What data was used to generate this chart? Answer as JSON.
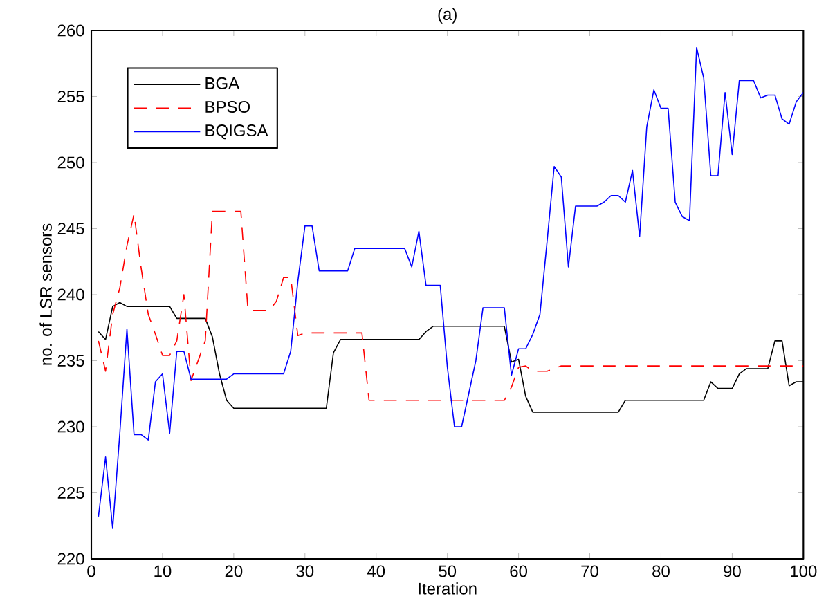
{
  "chart_data": {
    "type": "line",
    "title": "(a)",
    "xlabel": "Iteration",
    "ylabel": "no. of LSR sensors",
    "x": [
      1,
      2,
      3,
      4,
      5,
      6,
      7,
      8,
      9,
      10,
      11,
      12,
      13,
      14,
      15,
      16,
      17,
      18,
      19,
      20,
      21,
      22,
      23,
      24,
      25,
      26,
      27,
      28,
      29,
      30,
      31,
      32,
      33,
      34,
      35,
      36,
      37,
      38,
      39,
      40,
      41,
      42,
      43,
      44,
      45,
      46,
      47,
      48,
      49,
      50,
      51,
      52,
      53,
      54,
      55,
      56,
      57,
      58,
      59,
      60,
      61,
      62,
      63,
      64,
      65,
      66,
      67,
      68,
      69,
      70,
      71,
      72,
      73,
      74,
      75,
      76,
      77,
      78,
      79,
      80,
      81,
      82,
      83,
      84,
      85,
      86,
      87,
      88,
      89,
      90,
      91,
      92,
      93,
      94,
      95,
      96,
      97,
      98,
      99,
      100
    ],
    "series": [
      {
        "name": "BGA",
        "color": "#000000",
        "line_style": "solid",
        "values": [
          237.2,
          236.6,
          239.1,
          239.4,
          239.1,
          239.1,
          239.1,
          239.1,
          239.1,
          239.1,
          239.1,
          238.2,
          238.2,
          238.2,
          238.2,
          238.2,
          236.8,
          234.0,
          232.0,
          231.4,
          231.4,
          231.4,
          231.4,
          231.4,
          231.4,
          231.4,
          231.4,
          231.4,
          231.4,
          231.4,
          231.4,
          231.4,
          231.4,
          235.6,
          236.6,
          236.6,
          236.6,
          236.6,
          236.6,
          236.6,
          236.6,
          236.6,
          236.6,
          236.6,
          236.6,
          236.6,
          237.2,
          237.6,
          237.6,
          237.6,
          237.6,
          237.6,
          237.6,
          237.6,
          237.6,
          237.6,
          237.6,
          237.6,
          234.9,
          235.1,
          232.3,
          231.1,
          231.1,
          231.1,
          231.1,
          231.1,
          231.1,
          231.1,
          231.1,
          231.1,
          231.1,
          231.1,
          231.1,
          231.1,
          232.0,
          232.0,
          232.0,
          232.0,
          232.0,
          232.0,
          232.0,
          232.0,
          232.0,
          232.0,
          232.0,
          232.0,
          233.4,
          232.9,
          232.9,
          232.9,
          234.0,
          234.4,
          234.4,
          234.4,
          234.4,
          236.5,
          236.5,
          233.1,
          233.4,
          233.4
        ]
      },
      {
        "name": "BPSO",
        "color": "#ff0000",
        "line_style": "dashed",
        "values": [
          236.5,
          234.2,
          238.5,
          240.5,
          243.7,
          246.1,
          242.0,
          238.5,
          237.0,
          235.4,
          235.4,
          236.5,
          240.0,
          233.5,
          235.0,
          236.5,
          246.3,
          246.3,
          246.3,
          246.3,
          246.3,
          238.8,
          238.8,
          238.8,
          238.8,
          239.5,
          241.3,
          241.3,
          236.9,
          237.1,
          237.1,
          237.1,
          237.1,
          237.1,
          237.1,
          237.1,
          237.1,
          237.1,
          232.0,
          232.0,
          232.0,
          232.0,
          232.0,
          232.0,
          232.0,
          232.0,
          232.0,
          232.0,
          232.0,
          232.0,
          232.0,
          232.0,
          232.0,
          232.0,
          232.0,
          232.0,
          232.0,
          232.0,
          233.0,
          234.5,
          234.6,
          234.2,
          234.2,
          234.2,
          234.4,
          234.6,
          234.6,
          234.6,
          234.6,
          234.6,
          234.6,
          234.6,
          234.6,
          234.6,
          234.6,
          234.6,
          234.6,
          234.6,
          234.6,
          234.6,
          234.6,
          234.6,
          234.6,
          234.6,
          234.6,
          234.6,
          234.6,
          234.6,
          234.6,
          234.6,
          234.6,
          234.6,
          234.6,
          234.6,
          234.6,
          234.6,
          234.6,
          234.6,
          234.6,
          234.6
        ]
      },
      {
        "name": "BQIGSA",
        "color": "#0000ff",
        "line_style": "solid",
        "values": [
          223.2,
          227.7,
          222.3,
          229.5,
          237.4,
          229.4,
          229.4,
          229.0,
          233.4,
          234.0,
          229.5,
          235.7,
          235.7,
          233.6,
          233.6,
          233.6,
          233.6,
          233.6,
          233.6,
          234.0,
          234.0,
          234.0,
          234.0,
          234.0,
          234.0,
          234.0,
          234.0,
          235.7,
          241.0,
          245.2,
          245.2,
          241.8,
          241.8,
          241.8,
          241.8,
          241.8,
          243.5,
          243.5,
          243.5,
          243.5,
          243.5,
          243.5,
          243.5,
          243.5,
          242.1,
          244.8,
          240.7,
          240.7,
          240.7,
          234.5,
          230.0,
          230.0,
          232.5,
          235.0,
          239.0,
          239.0,
          239.0,
          239.0,
          233.9,
          235.9,
          235.9,
          237.0,
          238.5,
          244.0,
          249.7,
          248.9,
          242.1,
          246.7,
          246.7,
          246.7,
          246.7,
          247.0,
          247.5,
          247.5,
          247.0,
          249.4,
          244.4,
          252.7,
          255.5,
          254.1,
          254.1,
          247.0,
          245.9,
          245.6,
          258.7,
          256.4,
          249.0,
          249.0,
          255.3,
          250.6,
          256.2,
          256.2,
          256.2,
          254.9,
          255.1,
          255.1,
          253.3,
          252.9,
          254.6,
          255.3
        ]
      }
    ],
    "xlim": [
      0,
      100
    ],
    "xticks": [
      0,
      10,
      20,
      30,
      40,
      50,
      60,
      70,
      80,
      90,
      100
    ],
    "ylim": [
      220,
      260
    ],
    "yticks": [
      220,
      225,
      230,
      235,
      240,
      245,
      250,
      255,
      260
    ],
    "grid": false,
    "legend": "top left"
  }
}
